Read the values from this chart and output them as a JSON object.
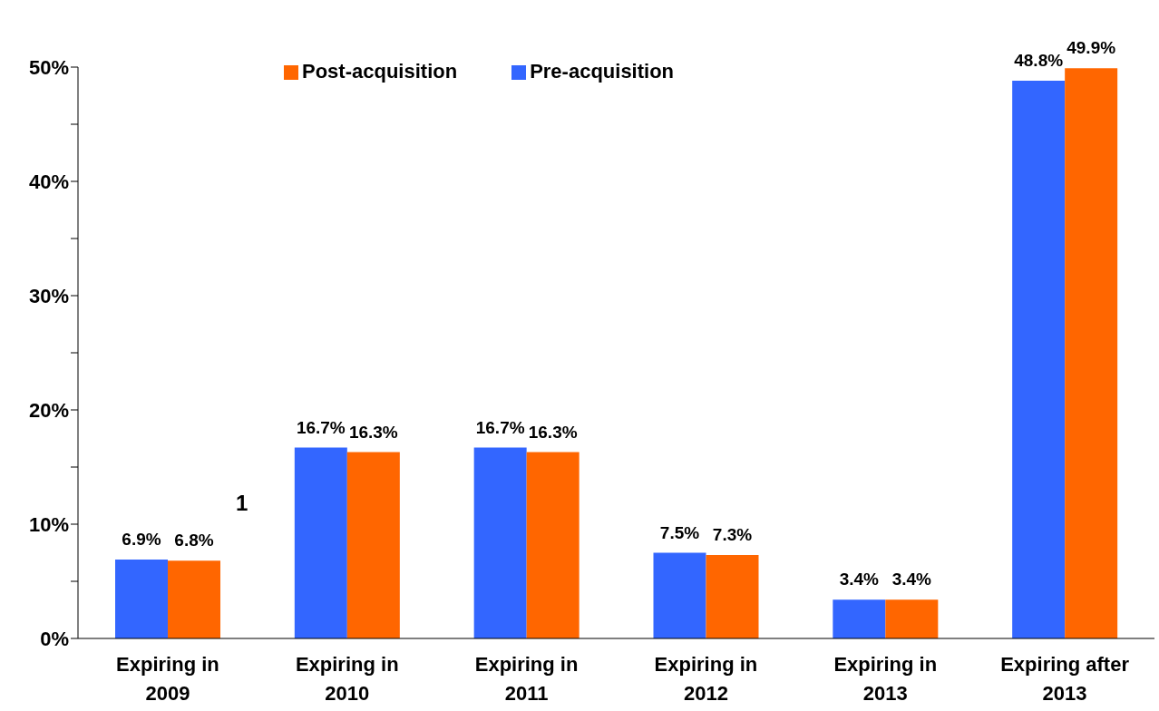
{
  "chart_data": {
    "type": "bar",
    "categories": [
      "Expiring in 2009",
      "Expiring in 2010",
      "Expiring in 2011",
      "Expiring in 2012",
      "Expiring in 2013",
      "Expiring after 2013"
    ],
    "series": [
      {
        "name": "Pre-acquisition",
        "color": "#3366ff",
        "values": [
          6.9,
          16.7,
          16.7,
          7.5,
          3.4,
          48.8
        ],
        "value_labels": [
          "6.9%",
          "16.7%",
          "16.7%",
          "7.5%",
          "3.4%",
          "48.8%"
        ]
      },
      {
        "name": "Post-acquisition",
        "color": "#ff6600",
        "values": [
          6.8,
          16.3,
          16.3,
          7.3,
          3.4,
          49.9
        ],
        "value_labels": [
          "6.8%",
          "16.3%",
          "16.3%",
          "7.3%",
          "3.4%",
          "49.9%"
        ]
      }
    ],
    "ylim": [
      0,
      50
    ],
    "yticks": [
      {
        "value": 0,
        "label": "0%"
      },
      {
        "value": 5,
        "label": null
      },
      {
        "value": 10,
        "label": "10%"
      },
      {
        "value": 15,
        "label": null
      },
      {
        "value": 20,
        "label": "20%"
      },
      {
        "value": 25,
        "label": null
      },
      {
        "value": 30,
        "label": "30%"
      },
      {
        "value": 35,
        "label": null
      },
      {
        "value": 40,
        "label": "40%"
      },
      {
        "value": 45,
        "label": null
      },
      {
        "value": 50,
        "label": "50%"
      }
    ],
    "annotations": [
      "1"
    ],
    "grid": false,
    "legend": "top"
  }
}
